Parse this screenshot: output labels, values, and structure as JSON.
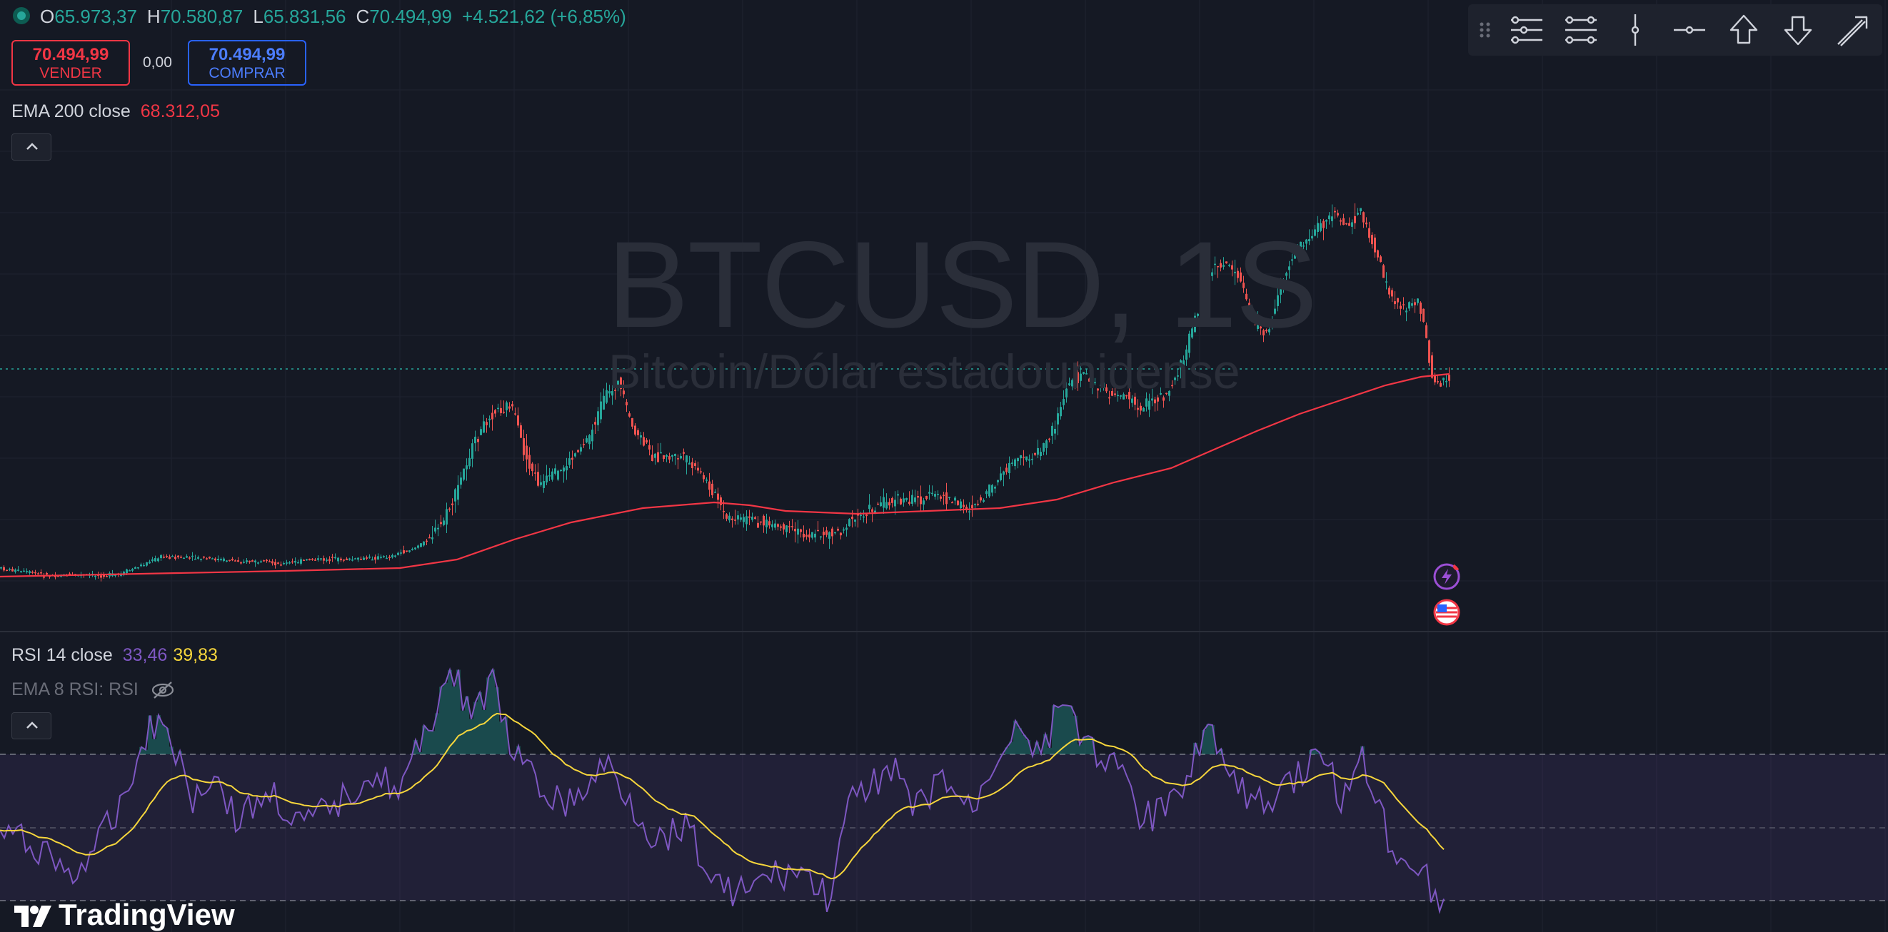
{
  "symbol": {
    "ticker_watermark": "BTCUSD, 1S",
    "name_watermark": "Bitcoin/Dólar estadounidense"
  },
  "ohlc": {
    "o_label": "O",
    "o_value": "65.973,37",
    "h_label": "H",
    "h_value": "70.580,87",
    "l_label": "L",
    "l_value": "65.831,56",
    "c_label": "C",
    "c_value": "70.494,99",
    "change": "+4.521,62 (+6,85%)"
  },
  "trade": {
    "sell_price": "70.494,99",
    "sell_label": "VENDER",
    "spread": "0,00",
    "buy_price": "70.494,99",
    "buy_label": "COMPRAR"
  },
  "ema_legend": {
    "label": "EMA 200 close",
    "value": "68.312,05"
  },
  "rsi_legend": {
    "label": "RSI 14 close",
    "rsi_value": "33,46",
    "ema_value": "39,83",
    "sub_label": "EMA 8 RSI: RSI"
  },
  "toolbar": {
    "icons": [
      "drag-handle-icon",
      "horizontal-lines-icon",
      "horizontal-lines-alt-icon",
      "vertical-line-icon",
      "horizontal-ray-icon",
      "arrow-up-icon",
      "arrow-down-icon",
      "trend-arrow-icon"
    ]
  },
  "logo": {
    "text": "TradingView"
  },
  "colors": {
    "background": "#151924",
    "grid": "#1f2330",
    "up": "#26a69a",
    "down": "#ef5350",
    "ema": "#f23645",
    "rsi": "#7e57c2",
    "rsi_ema": "#f7d63c"
  }
}
